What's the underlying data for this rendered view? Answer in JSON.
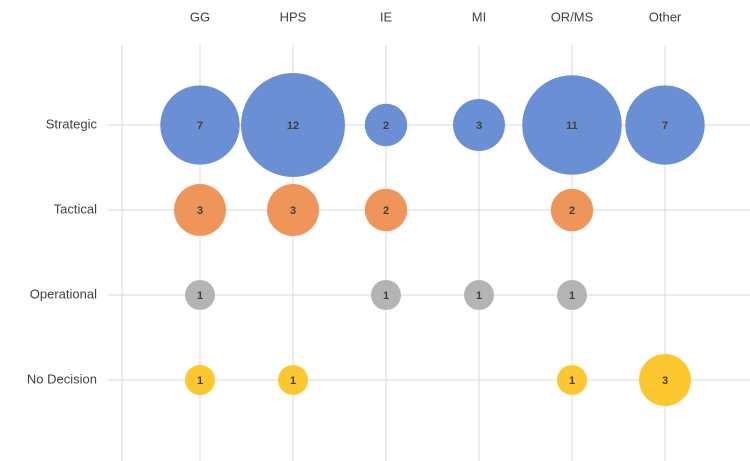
{
  "chart_data": {
    "type": "bubble",
    "categories": [
      "GG",
      "HPS",
      "IE",
      "MI",
      "OR/MS",
      "Other"
    ],
    "series": [
      {
        "name": "Strategic",
        "color": "#6b8fd4",
        "values": [
          7,
          12,
          2,
          3,
          11,
          7
        ]
      },
      {
        "name": "Tactical",
        "color": "#f0955a",
        "values": [
          3,
          3,
          2,
          null,
          2,
          null
        ]
      },
      {
        "name": "Operational",
        "color": "#b4b4b4",
        "values": [
          1,
          null,
          1,
          1,
          1,
          null
        ]
      },
      {
        "name": "No Decision",
        "color": "#fdc82f",
        "values": [
          1,
          1,
          null,
          null,
          1,
          3
        ]
      }
    ],
    "grid": true
  }
}
